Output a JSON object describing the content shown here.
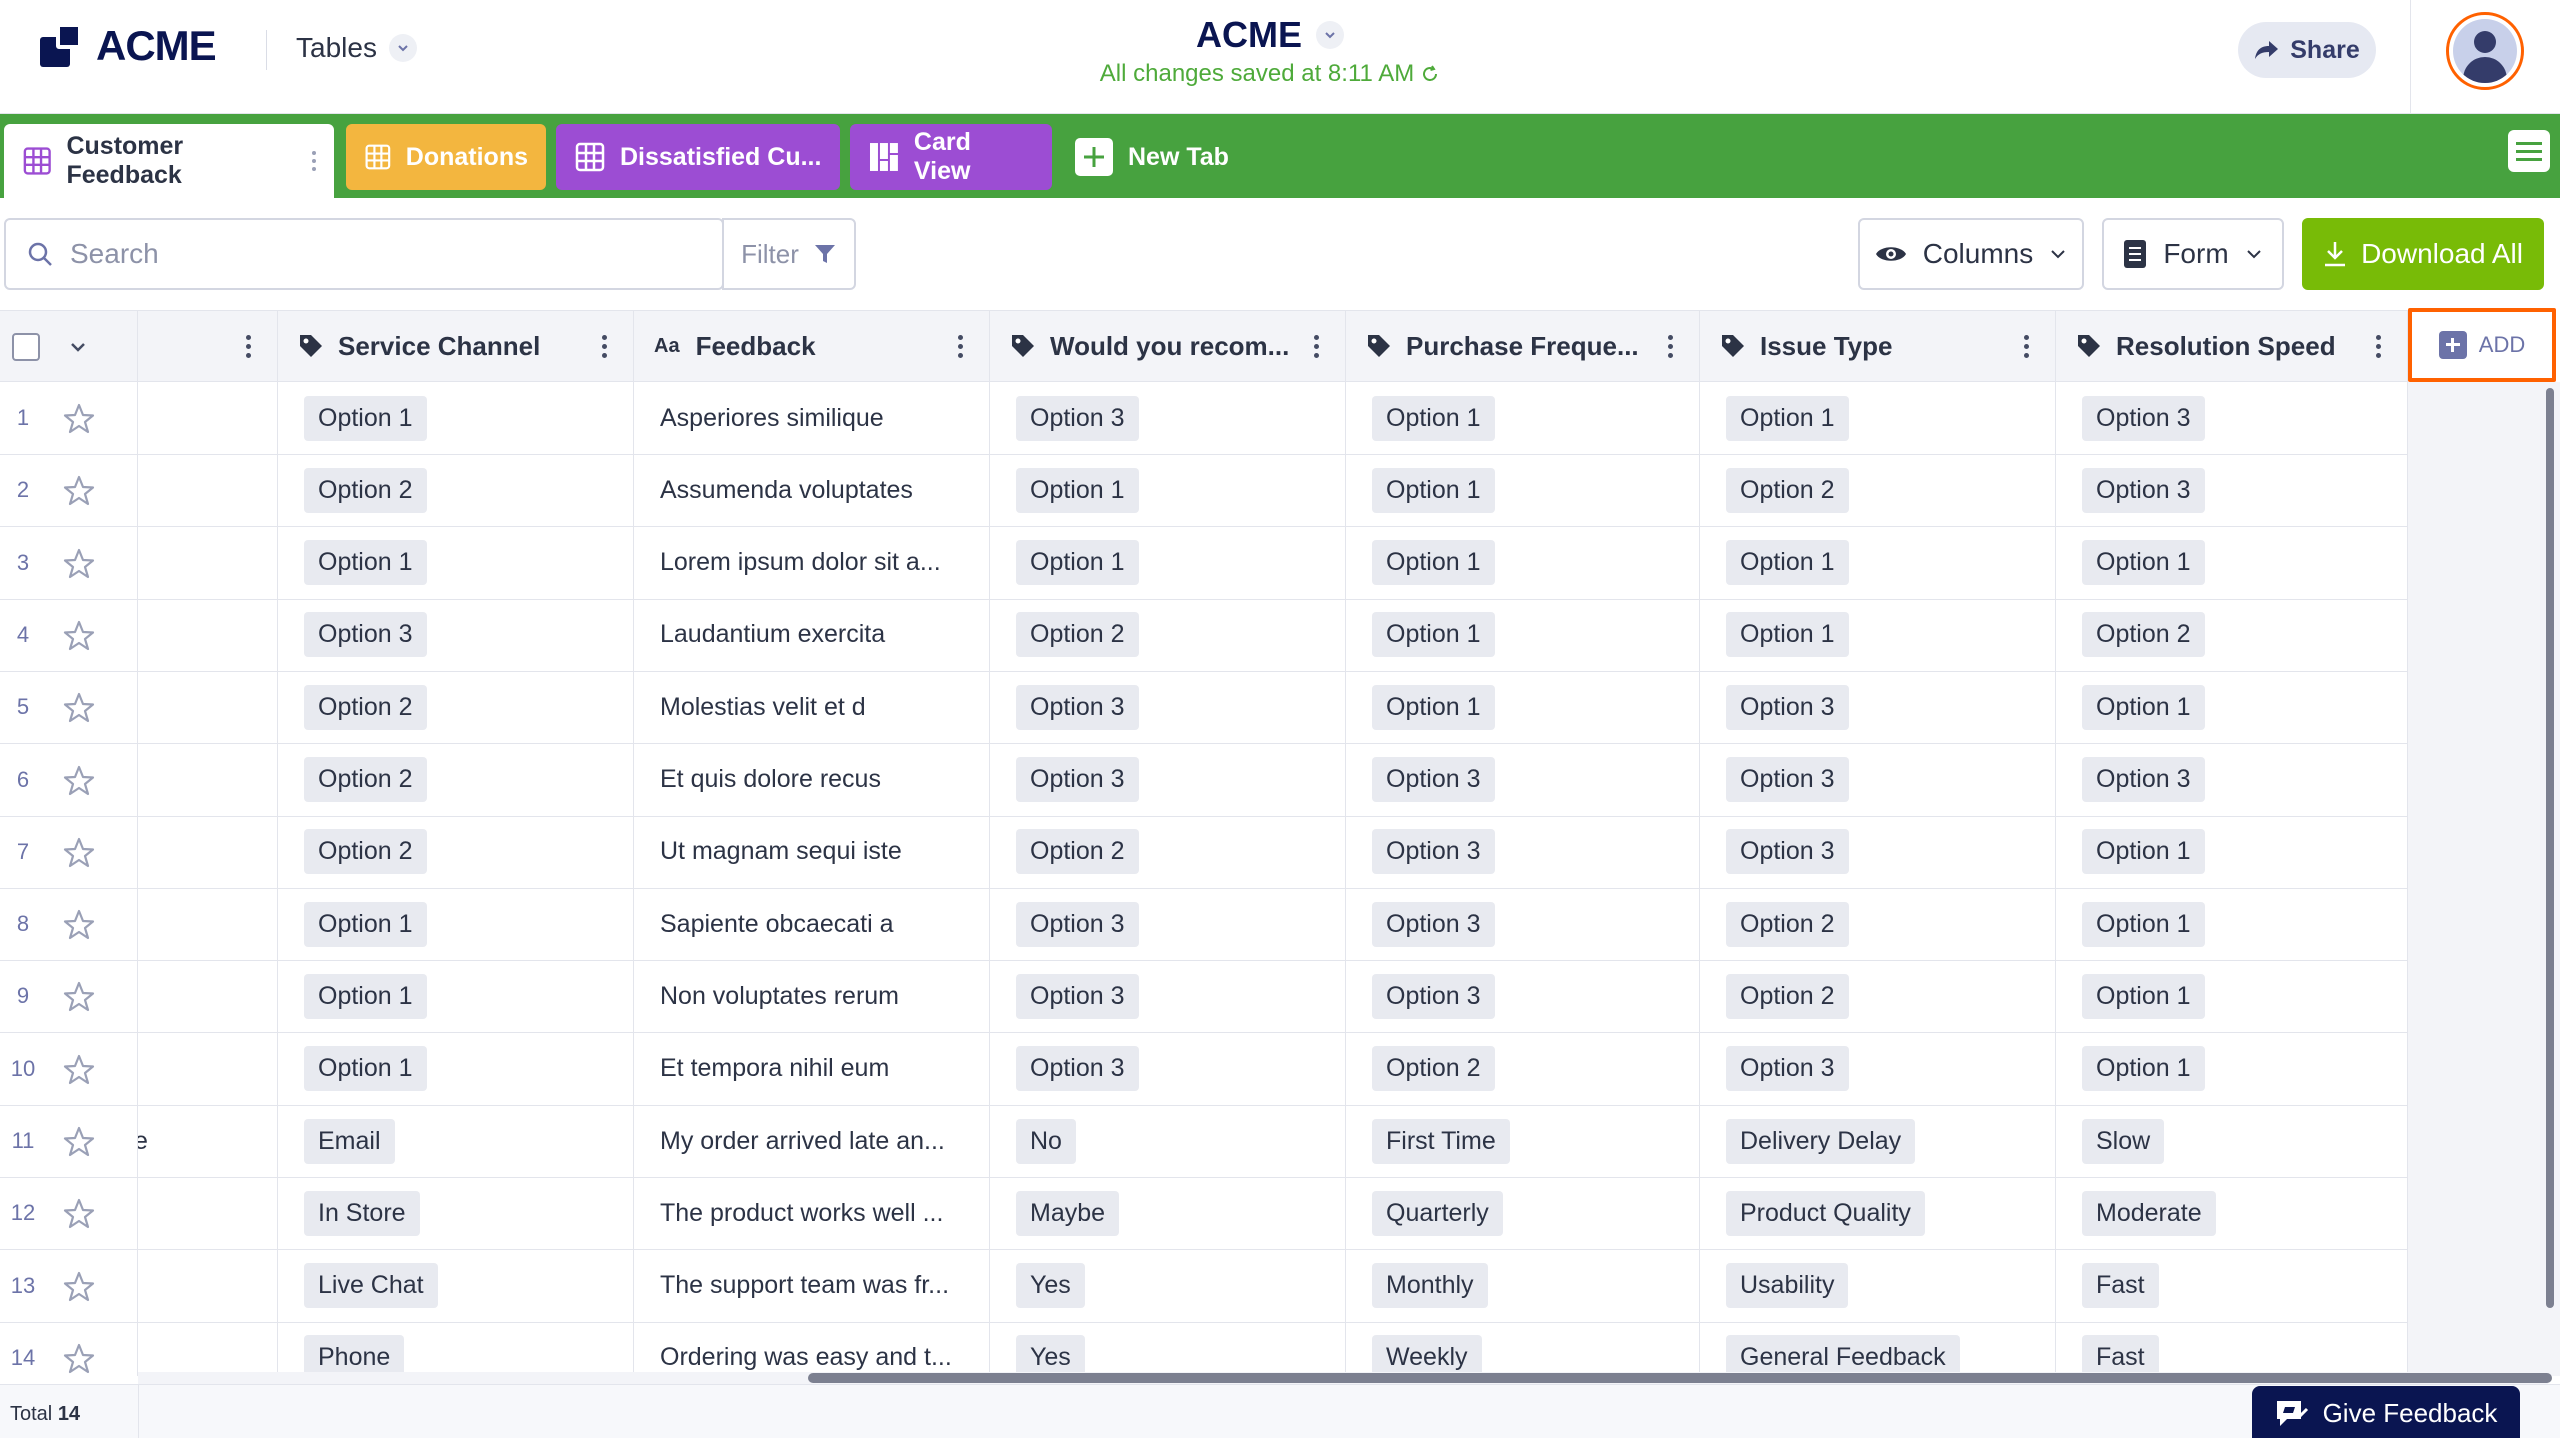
{
  "header": {
    "logo_text": "ACME",
    "tables_label": "Tables",
    "app_title": "ACME",
    "save_status": "All changes saved at 8:11 AM",
    "share_label": "Share"
  },
  "tabs": [
    {
      "label": "Customer Feedback",
      "color": "#ffffff",
      "icon": "table-icon"
    },
    {
      "label": "Donations",
      "color": "#f3b63f",
      "icon": "table-icon"
    },
    {
      "label": "Dissatisfied Cu...",
      "color": "#9c4dd3",
      "icon": "table-icon"
    },
    {
      "label": "Card View",
      "color": "#9c4dd3",
      "icon": "card-view-icon"
    },
    {
      "label": "New Tab",
      "color": "#47a23f",
      "icon": "plus-icon"
    }
  ],
  "toolbar": {
    "search_placeholder": "Search",
    "filter_label": "Filter",
    "columns_label": "Columns",
    "form_label": "Form",
    "download_label": "Download All"
  },
  "columns": [
    {
      "label": "Service Channel",
      "icon": "tag-icon"
    },
    {
      "label": "Feedback",
      "icon": "text-icon",
      "prefix": "Aa"
    },
    {
      "label": "Would you recom...",
      "icon": "tag-icon"
    },
    {
      "label": "Purchase Freque...",
      "icon": "tag-icon"
    },
    {
      "label": "Issue Type",
      "icon": "tag-icon"
    },
    {
      "label": "Resolution Speed",
      "icon": "tag-icon"
    }
  ],
  "add_column_label": "ADD",
  "rows": [
    {
      "num": "1",
      "prev": "",
      "cells": [
        "Option 1",
        "Asperiores similique",
        "Option 3",
        "Option 1",
        "Option 1",
        "Option 3"
      ]
    },
    {
      "num": "2",
      "prev": "",
      "cells": [
        "Option 2",
        "Assumenda voluptates",
        "Option 1",
        "Option 1",
        "Option 2",
        "Option 3"
      ]
    },
    {
      "num": "3",
      "prev": "",
      "cells": [
        "Option 1",
        "Lorem ipsum dolor sit a...",
        "Option 1",
        "Option 1",
        "Option 1",
        "Option 1"
      ]
    },
    {
      "num": "4",
      "prev": "",
      "cells": [
        "Option 3",
        "Laudantium exercita",
        "Option 2",
        "Option 1",
        "Option 1",
        "Option 2"
      ]
    },
    {
      "num": "5",
      "prev": "",
      "cells": [
        "Option 2",
        "Molestias velit et d",
        "Option 3",
        "Option 1",
        "Option 3",
        "Option 1"
      ]
    },
    {
      "num": "6",
      "prev": "",
      "cells": [
        "Option 2",
        "Et quis dolore recus",
        "Option 3",
        "Option 3",
        "Option 3",
        "Option 3"
      ]
    },
    {
      "num": "7",
      "prev": "",
      "cells": [
        "Option 2",
        "Ut magnam sequi iste",
        "Option 2",
        "Option 3",
        "Option 3",
        "Option 1"
      ]
    },
    {
      "num": "8",
      "prev": "",
      "cells": [
        "Option 1",
        "Sapiente obcaecati a",
        "Option 3",
        "Option 3",
        "Option 2",
        "Option 1"
      ]
    },
    {
      "num": "9",
      "prev": "",
      "cells": [
        "Option 1",
        "Non voluptates rerum",
        "Option 3",
        "Option 3",
        "Option 2",
        "Option 1"
      ]
    },
    {
      "num": "10",
      "prev": "",
      "cells": [
        "Option 1",
        "Et tempora nihil eum",
        "Option 3",
        "Option 2",
        "Option 3",
        "Option 1"
      ]
    },
    {
      "num": "11",
      "prev": "e",
      "cells": [
        "Email",
        "My order arrived late an...",
        "No",
        "First Time",
        "Delivery Delay",
        "Slow"
      ]
    },
    {
      "num": "12",
      "prev": "'",
      "cells": [
        "In Store",
        "The product works well ...",
        "Maybe",
        "Quarterly",
        "Product Quality",
        "Moderate"
      ]
    },
    {
      "num": "13",
      "prev": "",
      "cells": [
        "Live Chat",
        "The support team was fr...",
        "Yes",
        "Monthly",
        "Usability",
        "Fast"
      ]
    },
    {
      "num": "14",
      "prev": "",
      "cells": [
        "Phone",
        "Ordering was easy and t...",
        "Yes",
        "Weekly",
        "General Feedback",
        "Fast"
      ]
    }
  ],
  "footer": {
    "total_label": "Total",
    "total_value": "14",
    "feedback_label": "Give Feedback"
  }
}
